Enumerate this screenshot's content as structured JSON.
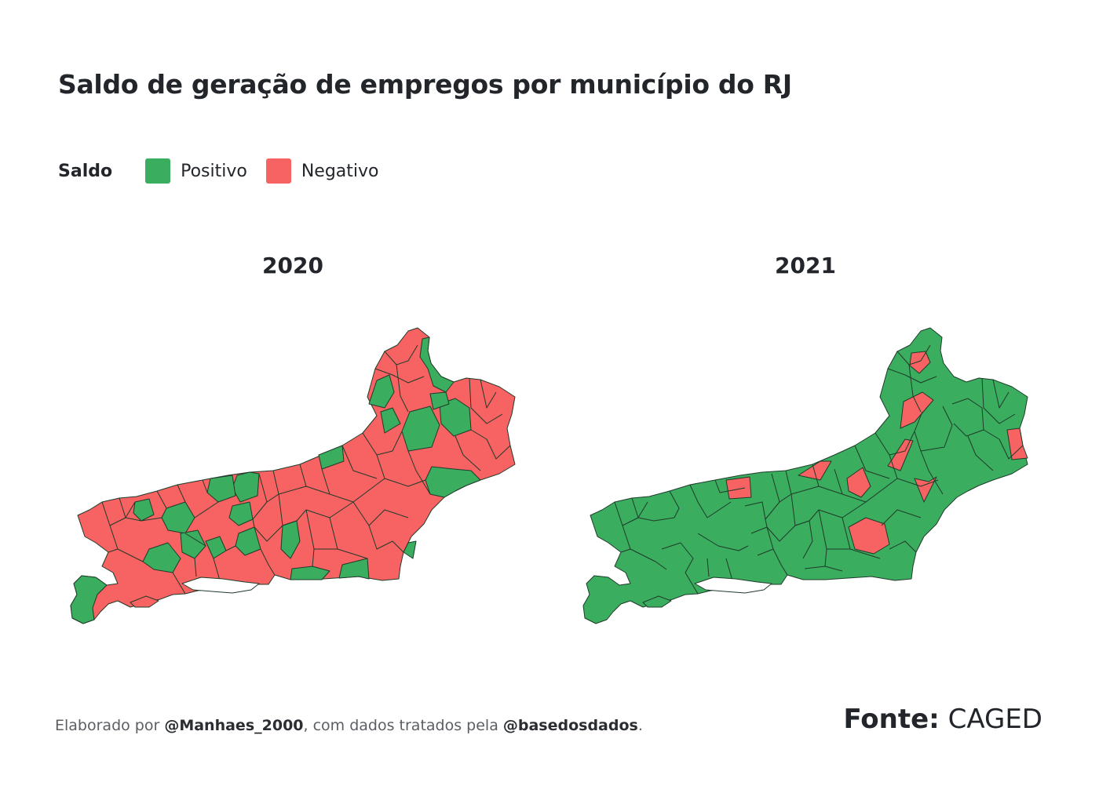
{
  "title": "Saldo de geração de empregos por município do RJ",
  "legend": {
    "title": "Saldo",
    "items": [
      {
        "label": "Positivo",
        "color": "#3aad5f"
      },
      {
        "label": "Negativo",
        "color": "#f76262"
      }
    ]
  },
  "maps": [
    {
      "year": "2020",
      "dominant": "Negativo"
    },
    {
      "year": "2021",
      "dominant": "Positivo"
    }
  ],
  "caption": {
    "prefix": "Elaborado por ",
    "author": "@Manhaes_2000",
    "middle": ", com dados tratados pela ",
    "org": "@basedosdados",
    "suffix": "."
  },
  "source": {
    "label": "Fonte:",
    "value": "CAGED"
  },
  "colors": {
    "positive": "#3aad5f",
    "negative": "#f76262",
    "border": "#1f3b2a"
  }
}
